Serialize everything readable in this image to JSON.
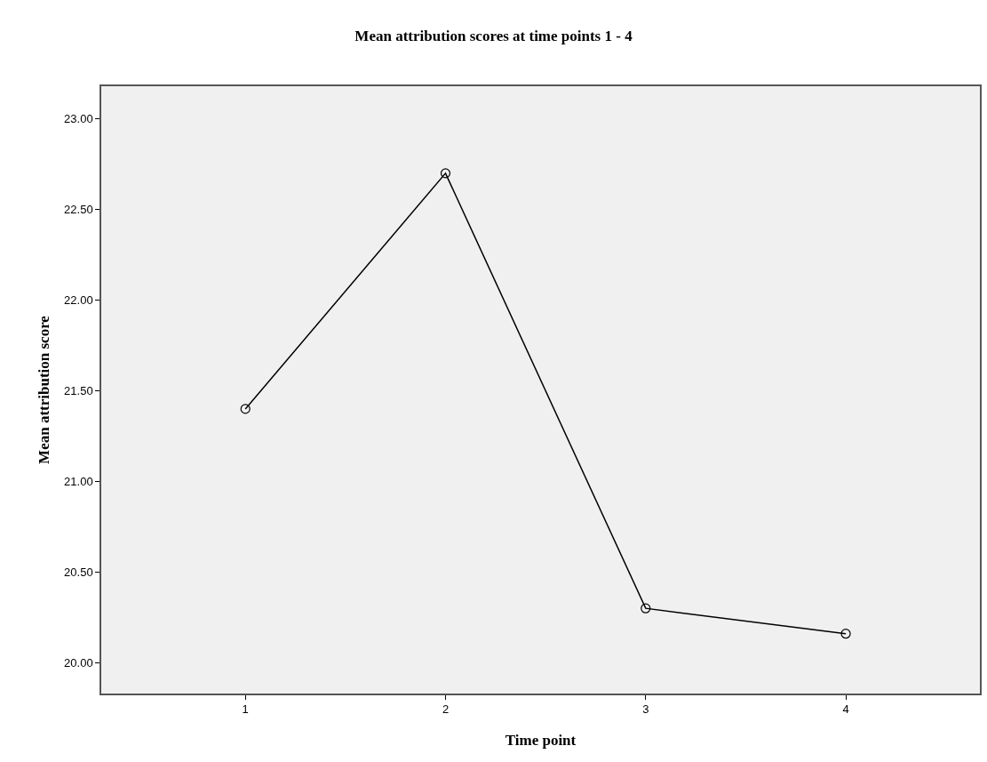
{
  "chart_data": {
    "type": "line",
    "title": "Mean attribution scores at time points 1 - 4",
    "xlabel": "Time point",
    "ylabel": "Mean attribution score",
    "x": [
      1,
      2,
      3,
      4
    ],
    "series": [
      {
        "color": "#000000",
        "values": [
          21.4,
          22.7,
          20.3,
          20.16
        ]
      }
    ],
    "xlim": [
      0.28,
      4.67
    ],
    "xticks": [
      1,
      2,
      3,
      4
    ],
    "ylim": [
      19.83,
      23.18
    ],
    "yticks": [
      {
        "value": 20,
        "label": "20.00"
      },
      {
        "value": 20.5,
        "label": "20.50"
      },
      {
        "value": 21,
        "label": "21.00"
      },
      {
        "value": 21.5,
        "label": "21.50"
      },
      {
        "value": 22,
        "label": "22.00"
      },
      {
        "value": 22.5,
        "label": "22.50"
      },
      {
        "value": 23,
        "label": "23.00"
      }
    ],
    "grid": false,
    "marker": "circle",
    "line_style": "solid"
  }
}
